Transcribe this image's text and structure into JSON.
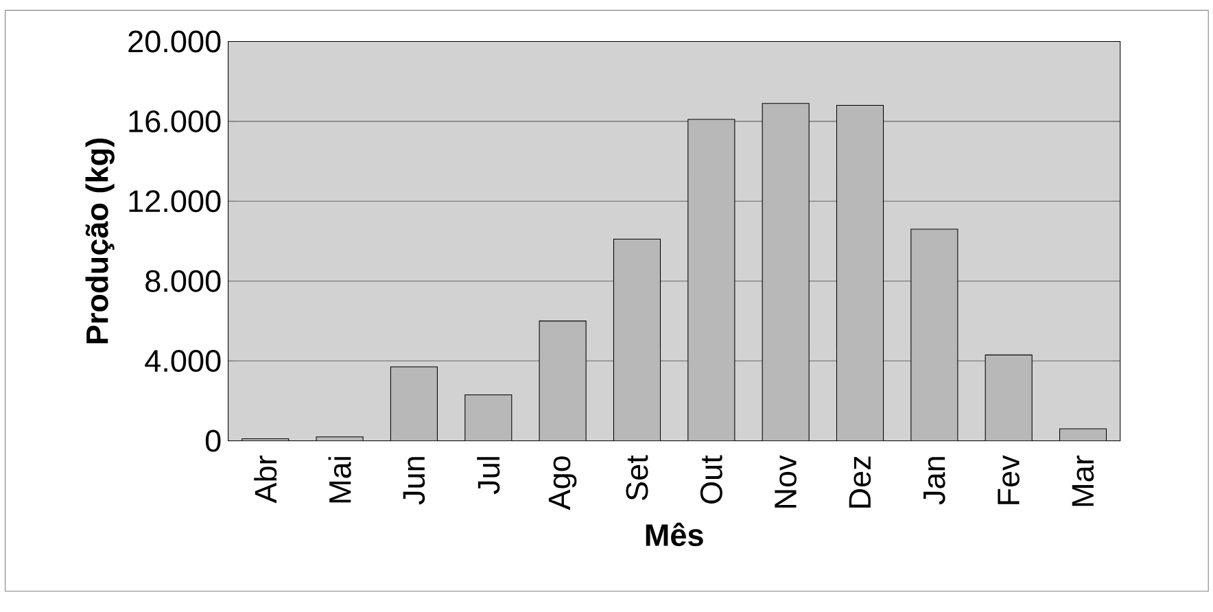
{
  "chart_data": {
    "type": "bar",
    "xlabel": "Mês",
    "ylabel": "Produção (kg)",
    "categories": [
      "Abr",
      "Mai",
      "Jun",
      "Jul",
      "Ago",
      "Set",
      "Out",
      "Nov",
      "Dez",
      "Jan",
      "Fev",
      "Mar"
    ],
    "values": [
      100,
      200,
      3700,
      2300,
      6000,
      10100,
      16100,
      16900,
      16800,
      10600,
      4300,
      600
    ],
    "color": "#b8b8b8",
    "ylim": [
      0,
      20000
    ],
    "yticks": [
      {
        "value": 0,
        "label": "0"
      },
      {
        "value": 4000,
        "label": "4.000"
      },
      {
        "value": 8000,
        "label": "8.000"
      },
      {
        "value": 12000,
        "label": "12.000"
      },
      {
        "value": 16000,
        "label": "16.000"
      },
      {
        "value": 20000,
        "label": "20.000"
      }
    ],
    "grid": "y"
  }
}
